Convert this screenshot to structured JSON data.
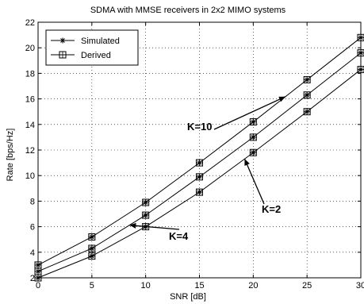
{
  "chart_data": {
    "type": "line",
    "title": "SDMA with MMSE receivers in 2x2 MIMO systems",
    "xlabel": "SNR [dB]",
    "ylabel": "Rate [bps/Hz]",
    "xlim": [
      0,
      30
    ],
    "ylim": [
      2,
      22
    ],
    "xticks": [
      0,
      5,
      10,
      15,
      20,
      25,
      30
    ],
    "yticks": [
      2,
      4,
      6,
      8,
      10,
      12,
      14,
      16,
      18,
      20,
      22
    ],
    "grid": true,
    "legend": {
      "placement": "top-left",
      "entries": [
        {
          "label": "Simulated",
          "marker": "asterisk"
        },
        {
          "label": "Derived",
          "marker": "square"
        }
      ]
    },
    "x": [
      0,
      5,
      10,
      15,
      20,
      25,
      30
    ],
    "series": [
      {
        "curve": "K=10",
        "values": [
          3.0,
          5.2,
          7.9,
          11.0,
          14.2,
          17.5,
          20.8
        ]
      },
      {
        "curve": "K=4",
        "values": [
          2.5,
          4.3,
          6.9,
          9.9,
          13.0,
          16.3,
          19.6
        ]
      },
      {
        "curve": "K=2",
        "values": [
          2.0,
          3.7,
          6.0,
          8.7,
          11.8,
          15.0,
          18.3
        ]
      }
    ],
    "annotations": [
      {
        "text": "K=10",
        "series": 0,
        "at_x": 23
      },
      {
        "text": "K=4",
        "series": 1,
        "at_x": 8.5
      },
      {
        "text": "K=2",
        "series": 2,
        "at_x": 19.2
      }
    ]
  }
}
